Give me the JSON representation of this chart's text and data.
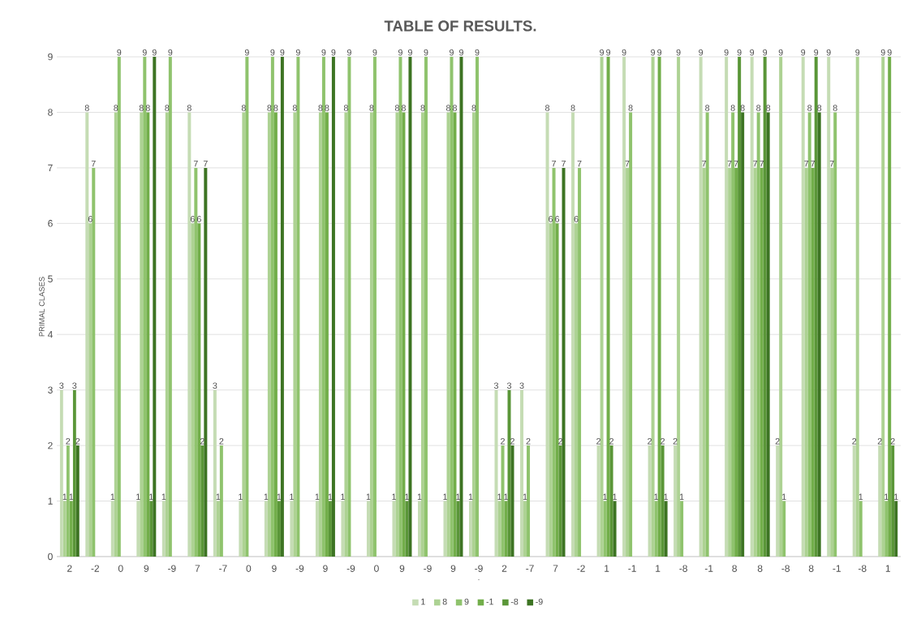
{
  "chart_data": {
    "type": "bar",
    "title": "TABLE OF RESULTS.",
    "xlabel": ".",
    "ylabel": "PRIMAL CLASES",
    "categories": [
      "2",
      "-2",
      "0",
      "9",
      "-9",
      "7",
      "-7",
      "0",
      "9",
      "-9",
      "9",
      "-9",
      "0",
      "9",
      "-9",
      "9",
      "-9",
      "2",
      "-7",
      "7",
      "-2",
      "1",
      "-1",
      "1",
      "-8",
      "-1",
      "8",
      "8",
      "-8",
      "8",
      "-1",
      "-8",
      "1"
    ],
    "series": [
      {
        "name": "1",
        "color": "#c5dcb4",
        "values": [
          3,
          8,
          1,
          1,
          1,
          8,
          3,
          1,
          1,
          1,
          1,
          1,
          1,
          1,
          1,
          1,
          1,
          3,
          3,
          8,
          8,
          2,
          9,
          2,
          2,
          9,
          9,
          9,
          2,
          9,
          9,
          2,
          2
        ]
      },
      {
        "name": "8",
        "color": "#add293",
        "values": [
          1,
          6,
          8,
          8,
          8,
          6,
          1,
          8,
          8,
          8,
          8,
          8,
          8,
          8,
          8,
          8,
          8,
          1,
          1,
          6,
          6,
          9,
          7,
          9,
          9,
          7,
          7,
          7,
          9,
          7,
          7,
          9,
          9
        ]
      },
      {
        "name": "9",
        "color": "#8fc36d",
        "values": [
          2,
          7,
          9,
          9,
          9,
          7,
          2,
          9,
          9,
          9,
          9,
          9,
          9,
          9,
          9,
          9,
          9,
          2,
          2,
          7,
          7,
          1,
          8,
          1,
          1,
          8,
          8,
          8,
          1,
          8,
          8,
          1,
          1
        ]
      },
      {
        "name": "-1",
        "color": "#72ae4a",
        "values": [
          1,
          null,
          null,
          8,
          null,
          6,
          null,
          null,
          8,
          null,
          8,
          null,
          null,
          8,
          null,
          8,
          null,
          1,
          null,
          6,
          null,
          9,
          null,
          9,
          null,
          null,
          7,
          7,
          null,
          7,
          null,
          null,
          9
        ]
      },
      {
        "name": "-8",
        "color": "#5a9638",
        "values": [
          3,
          null,
          null,
          1,
          null,
          2,
          null,
          null,
          1,
          null,
          1,
          null,
          null,
          1,
          null,
          1,
          null,
          3,
          null,
          2,
          null,
          2,
          null,
          2,
          null,
          null,
          9,
          9,
          null,
          9,
          null,
          null,
          2
        ]
      },
      {
        "name": "-9",
        "color": "#3d7423",
        "values": [
          2,
          null,
          null,
          9,
          null,
          7,
          null,
          null,
          9,
          null,
          9,
          null,
          null,
          9,
          null,
          9,
          null,
          2,
          null,
          7,
          null,
          1,
          null,
          1,
          null,
          null,
          8,
          8,
          null,
          8,
          null,
          null,
          1
        ]
      }
    ],
    "ylim": [
      0,
      9
    ],
    "yticks": [
      0,
      1,
      2,
      3,
      4,
      5,
      6,
      7,
      8,
      9
    ],
    "grid": "y",
    "legend": "bottom",
    "data_labels": true
  }
}
